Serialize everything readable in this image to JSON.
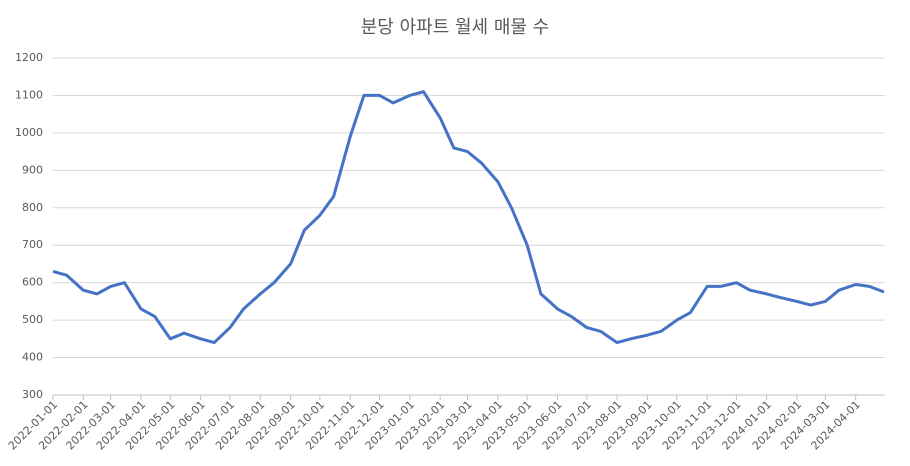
{
  "chart_data": {
    "type": "line",
    "title": "분당 아파트 월세 매물 수",
    "x": [
      "2022-01-01",
      "2022-01-15",
      "2022-02-01",
      "2022-02-15",
      "2022-03-01",
      "2022-03-15",
      "2022-04-01",
      "2022-04-15",
      "2022-05-01",
      "2022-05-15",
      "2022-06-01",
      "2022-06-15",
      "2022-07-01",
      "2022-07-15",
      "2022-08-01",
      "2022-08-15",
      "2022-09-01",
      "2022-09-15",
      "2022-10-01",
      "2022-10-15",
      "2022-11-01",
      "2022-11-15",
      "2022-12-01",
      "2022-12-15",
      "2023-01-01",
      "2023-01-15",
      "2023-02-01",
      "2023-02-15",
      "2023-03-01",
      "2023-03-15",
      "2023-04-01",
      "2023-04-15",
      "2023-05-01",
      "2023-05-15",
      "2023-06-01",
      "2023-06-15",
      "2023-07-01",
      "2023-07-15",
      "2023-08-01",
      "2023-08-15",
      "2023-09-01",
      "2023-09-15",
      "2023-10-01",
      "2023-10-15",
      "2023-11-01",
      "2023-11-15",
      "2023-12-01",
      "2023-12-15",
      "2024-01-01",
      "2024-01-15",
      "2024-02-01",
      "2024-02-15",
      "2024-03-01",
      "2024-03-15",
      "2024-04-01",
      "2024-04-15",
      "2024-04-30"
    ],
    "series": [
      {
        "name": "매물 수",
        "color": "#4472c4",
        "values": [
          630,
          620,
          580,
          570,
          590,
          600,
          530,
          510,
          450,
          465,
          450,
          440,
          480,
          530,
          570,
          600,
          650,
          740,
          780,
          830,
          990,
          1100,
          1100,
          1080,
          1100,
          1110,
          1040,
          960,
          950,
          920,
          870,
          800,
          700,
          570,
          530,
          510,
          480,
          470,
          440,
          450,
          460,
          470,
          500,
          520,
          590,
          590,
          600,
          580,
          570,
          560,
          550,
          540,
          550,
          580,
          595,
          590,
          575
        ]
      }
    ],
    "xlim": [
      "2022-01-01",
      "2024-05-01"
    ],
    "xticks": [
      "2022-01-01",
      "2022-02-01",
      "2022-03-01",
      "2022-04-01",
      "2022-05-01",
      "2022-06-01",
      "2022-07-01",
      "2022-08-01",
      "2022-09-01",
      "2022-10-01",
      "2022-11-01",
      "2022-12-01",
      "2023-01-01",
      "2023-02-01",
      "2023-03-01",
      "2023-04-01",
      "2023-05-01",
      "2023-06-01",
      "2023-07-01",
      "2023-08-01",
      "2023-09-01",
      "2023-10-01",
      "2023-11-01",
      "2023-12-01",
      "2024-01-01",
      "2024-02-01",
      "2024-03-01",
      "2024-04-01"
    ],
    "ylim": [
      300,
      1200
    ],
    "yticks": [
      300,
      400,
      500,
      600,
      700,
      800,
      900,
      1000,
      1100,
      1200
    ],
    "grid": true
  }
}
